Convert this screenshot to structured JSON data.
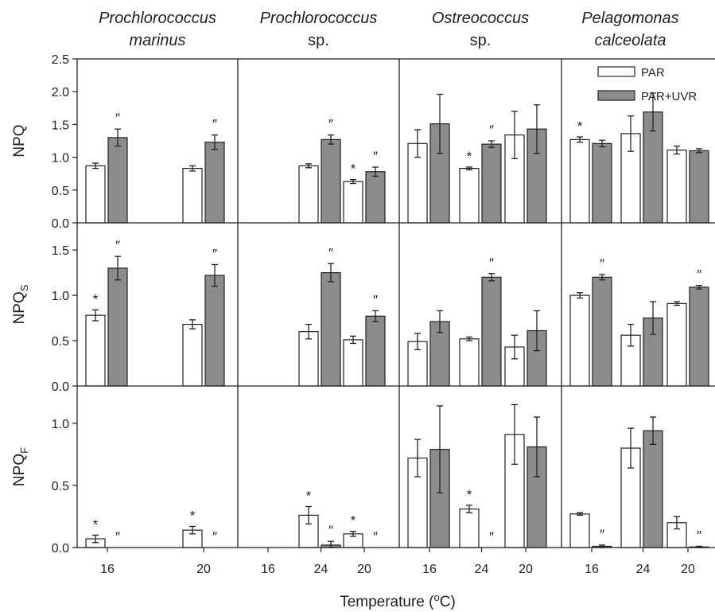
{
  "chart_data": {
    "type": "bar",
    "layout": "4 columns x 3 rows of panels, shared axes",
    "columns": [
      {
        "line1": "Prochlorococcus",
        "line2": "marinus",
        "line2_italic": true
      },
      {
        "line1": "Prochlorococcus",
        "line2": "sp.",
        "line2_italic": false
      },
      {
        "line1": "Ostreococcus",
        "line2": "sp.",
        "line2_italic": false
      },
      {
        "line1": "Pelagomonas",
        "line2": "calceolata",
        "line2_italic": true
      }
    ],
    "x_categories": [
      "16",
      "20",
      "24"
    ],
    "xlabel": "Temperature (",
    "xlabel_sup": "o",
    "xlabel_end": "C)",
    "legend": {
      "placement": "top-right",
      "items": [
        {
          "name": "PAR",
          "color": "#ffffff"
        },
        {
          "name": "PAR+UVR",
          "color": "#8c8c8c"
        }
      ]
    },
    "rows": [
      {
        "ylabel": "NPQ",
        "ylabel_sub": "",
        "ylim": [
          0,
          2.5
        ],
        "yticks": [
          "0.0",
          "0.5",
          "1.0",
          "1.5",
          "2.0",
          "2.5"
        ],
        "panels": [
          {
            "par": [
              0.87,
              0.83,
              0.87
            ],
            "par_err": [
              0.04,
              0.04,
              0.03
            ],
            "uvr": [
              1.3,
              1.23,
              1.27
            ],
            "uvr_err": [
              0.13,
              0.11,
              0.07
            ],
            "par_sig": [
              "",
              "",
              ""
            ],
            "uvr_sig": [
              "″",
              "″",
              "″"
            ]
          },
          {
            "par": [
              null,
              0.63,
              0.83
            ],
            "par_err": [
              null,
              0.03,
              0.02
            ],
            "uvr": [
              null,
              0.78,
              1.2
            ],
            "uvr_err": [
              null,
              0.07,
              0.05
            ],
            "par_sig": [
              "",
              "*",
              "*"
            ],
            "uvr_sig": [
              "",
              "″",
              "″"
            ]
          },
          {
            "par": [
              1.21,
              1.34,
              1.36
            ],
            "par_err": [
              0.21,
              0.36,
              0.27
            ],
            "uvr": [
              1.51,
              1.43,
              1.69
            ],
            "uvr_err": [
              0.45,
              0.37,
              0.29
            ],
            "par_sig": [
              "",
              "",
              ""
            ],
            "uvr_sig": [
              "",
              "",
              ""
            ]
          },
          {
            "par": [
              1.27,
              1.11,
              0.98
            ],
            "par_err": [
              0.04,
              0.06,
              0.06
            ],
            "uvr": [
              1.21,
              1.1,
              0.98
            ],
            "uvr_err": [
              0.05,
              0.03,
              0.03
            ],
            "par_sig": [
              "*",
              "",
              ""
            ],
            "uvr_sig": [
              "",
              "",
              ""
            ]
          }
        ]
      },
      {
        "ylabel": "NPQ",
        "ylabel_sub": "S",
        "ylim": [
          0,
          1.8
        ],
        "yticks": [
          "0.0",
          "0.5",
          "1.0",
          "1.5"
        ],
        "panels": [
          {
            "par": [
              0.78,
              0.68,
              0.6
            ],
            "par_err": [
              0.06,
              0.05,
              0.08
            ],
            "uvr": [
              1.3,
              1.22,
              1.25
            ],
            "uvr_err": [
              0.13,
              0.12,
              0.1
            ],
            "par_sig": [
              "*",
              "",
              ""
            ],
            "uvr_sig": [
              "″",
              "″",
              "″"
            ]
          },
          {
            "par": [
              null,
              0.51,
              0.52
            ],
            "par_err": [
              null,
              0.04,
              0.02
            ],
            "uvr": [
              null,
              0.77,
              1.2
            ],
            "uvr_err": [
              null,
              0.06,
              0.04
            ],
            "par_sig": [
              "",
              "",
              ""
            ],
            "uvr_sig": [
              "",
              "″",
              "″"
            ]
          },
          {
            "par": [
              0.49,
              0.43,
              0.56
            ],
            "par_err": [
              0.09,
              0.13,
              0.12
            ],
            "uvr": [
              0.71,
              0.61,
              0.75
            ],
            "uvr_err": [
              0.12,
              0.22,
              0.18
            ],
            "par_sig": [
              "",
              "",
              ""
            ],
            "uvr_sig": [
              "",
              "",
              ""
            ]
          },
          {
            "par": [
              1.0,
              0.91,
              0.76
            ],
            "par_err": [
              0.03,
              0.02,
              0.11
            ],
            "uvr": [
              1.2,
              1.09,
              0.98
            ],
            "uvr_err": [
              0.03,
              0.02,
              0.03
            ],
            "par_sig": [
              "",
              "",
              "*"
            ],
            "uvr_sig": [
              "″",
              "″",
              "″"
            ]
          }
        ]
      },
      {
        "ylabel": "NPQ",
        "ylabel_sub": "F",
        "ylim": [
          0,
          1.3
        ],
        "yticks": [
          "0.0",
          "0.5",
          "1.0"
        ],
        "panels": [
          {
            "par": [
              0.07,
              0.14,
              0.26
            ],
            "par_err": [
              0.03,
              0.03,
              0.07
            ],
            "uvr": [
              0.0,
              0.0,
              0.02
            ],
            "uvr_err": [
              0,
              0,
              0.03
            ],
            "par_sig": [
              "*",
              "*",
              "*"
            ],
            "uvr_sig": [
              "″",
              "″",
              "″"
            ]
          },
          {
            "par": [
              null,
              0.11,
              0.31
            ],
            "par_err": [
              null,
              0.02,
              0.03
            ],
            "uvr": [
              null,
              0.0,
              0.0
            ],
            "uvr_err": [
              null,
              0,
              0
            ],
            "par_sig": [
              "",
              "*",
              "*"
            ],
            "uvr_sig": [
              "",
              "″",
              "″"
            ]
          },
          {
            "par": [
              0.72,
              0.91,
              0.8
            ],
            "par_err": [
              0.15,
              0.24,
              0.16
            ],
            "uvr": [
              0.79,
              0.81,
              0.94
            ],
            "uvr_err": [
              0.35,
              0.24,
              0.11
            ],
            "par_sig": [
              "",
              "",
              ""
            ],
            "uvr_sig": [
              "",
              "",
              ""
            ]
          },
          {
            "par": [
              0.27,
              0.2,
              0.22
            ],
            "par_err": [
              0.01,
              0.05,
              0.06
            ],
            "uvr": [
              0.01,
              0.005,
              0.0
            ],
            "uvr_err": [
              0.01,
              0.005,
              0
            ],
            "par_sig": [
              "",
              "",
              ""
            ],
            "uvr_sig": [
              "″",
              "″",
              "″"
            ]
          }
        ]
      }
    ]
  }
}
